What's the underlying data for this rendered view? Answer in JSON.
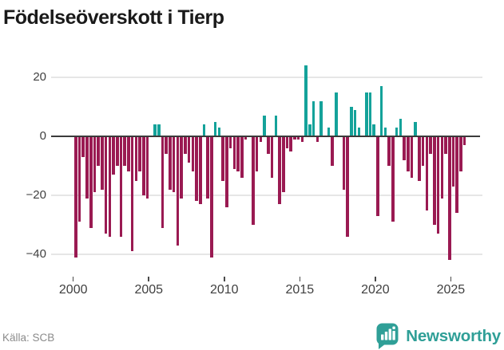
{
  "title": "Födelseöverskott i Tierp",
  "footer": {
    "source": "Källa: SCB",
    "brand": "Newsworthy",
    "logo_icon": "newsworthy-pin-bar-chart-badge"
  },
  "colors": {
    "positive_bar": "#14a29a",
    "negative_bar": "#9a1a52",
    "title_text": "#1a1a1a",
    "axis_text": "#3f3f3f",
    "gridline": "#e6e6e6",
    "zero_line": "#3b3b3b",
    "source_text": "#8b8b8b",
    "brand_teal": "#2f9f97"
  },
  "chart_data": {
    "type": "bar",
    "title": "Födelseöverskott i Tierp",
    "frequency": "quarterly",
    "x_start": "2000-Q1",
    "x_end": "2025-Q4",
    "grid": true,
    "legend": "none",
    "ylim": [
      -46,
      27
    ],
    "y_ticks": [
      {
        "v": 20,
        "label": "20"
      },
      {
        "v": 0,
        "label": "0"
      },
      {
        "v": -20,
        "label": "−20"
      },
      {
        "v": -40,
        "label": "−40"
      }
    ],
    "x_tick_years": [
      2000,
      2005,
      2010,
      2015,
      2020,
      2025
    ],
    "series": [
      {
        "name": "Födelseöverskott",
        "values": [
          -41,
          -29,
          -7,
          -21,
          -31,
          -19,
          -10,
          -18,
          -33,
          -34,
          -13,
          -10,
          -34,
          -10,
          -12,
          -39,
          -15,
          -12,
          -20,
          -21,
          0,
          4,
          4,
          -31,
          -6,
          -18,
          -19,
          -37,
          -21,
          -6,
          -9,
          -12,
          -22,
          -23,
          4,
          -21,
          -41,
          5,
          3,
          -15,
          -24,
          -4,
          -11,
          -12,
          -14,
          -1,
          0,
          -30,
          -12,
          -2,
          7,
          -6,
          -14,
          7,
          -23,
          -19,
          -4,
          -5,
          -1,
          -1,
          -2,
          24,
          4,
          12,
          -2,
          12,
          0,
          3,
          -10,
          15,
          0,
          -18,
          -34,
          10,
          9,
          3,
          0,
          15,
          15,
          4,
          -27,
          17,
          3,
          -10,
          -29,
          3,
          6,
          -8,
          -12,
          -14,
          5,
          -15,
          -10,
          -25,
          -6,
          -30,
          -33,
          -21,
          -6,
          -42,
          -17,
          -26,
          -12,
          -3
        ]
      }
    ]
  }
}
